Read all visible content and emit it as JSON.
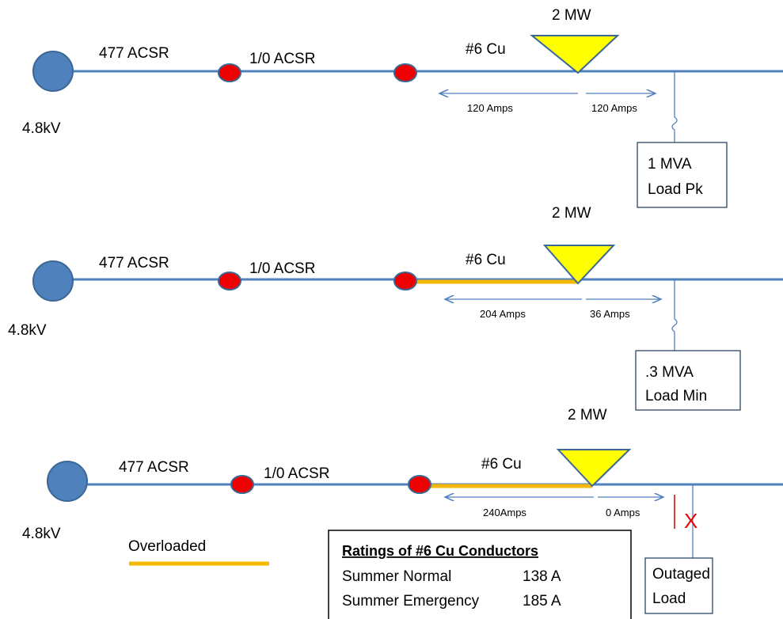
{
  "scenarios": [
    {
      "source": "4.8kV",
      "seg1": "477 ACSR",
      "seg2": "1/0 ACSR",
      "seg3": "#6 Cu",
      "gen": "2 MW",
      "amps_left": "120 Amps",
      "amps_right": "120 Amps",
      "load": [
        "1 MVA",
        "Load Pk"
      ]
    },
    {
      "source": "4.8kV",
      "seg1": "477 ACSR",
      "seg2": "1/0 ACSR",
      "seg3": "#6 Cu",
      "gen": "2 MW",
      "amps_left": "204 Amps",
      "amps_right": "36 Amps",
      "load": [
        ".3 MVA",
        "Load Min"
      ]
    },
    {
      "source": "4.8kV",
      "seg1": "477 ACSR",
      "seg2": "1/0 ACSR",
      "seg3": "#6 Cu",
      "gen": "2 MW",
      "amps_left": "240Amps",
      "amps_right": "0 Amps",
      "load": [
        "Outaged",
        "Load"
      ],
      "outage_mark": "X"
    }
  ],
  "legend": {
    "label": "Overloaded"
  },
  "ratings": {
    "title": "Ratings of #6 Cu Conductors",
    "rows": [
      [
        "Summer Normal",
        "138 A"
      ],
      [
        "Summer Emergency",
        "185 A"
      ]
    ]
  }
}
